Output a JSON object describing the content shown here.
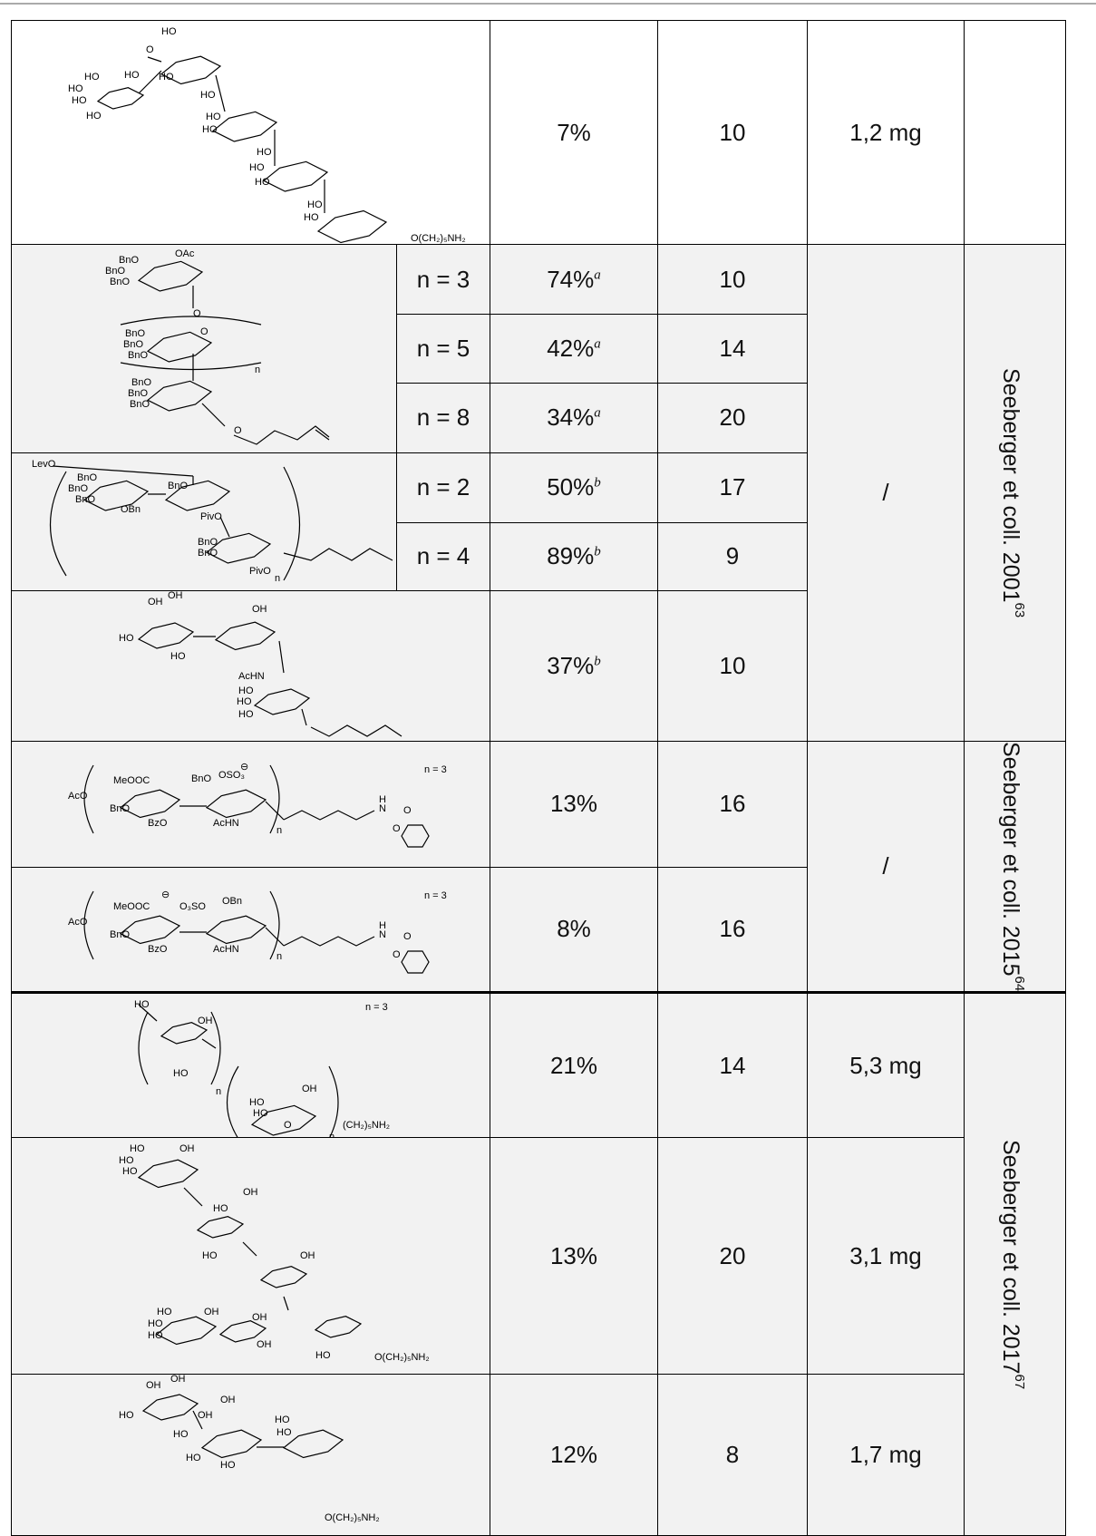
{
  "table": {
    "groups": [
      {
        "rows": [
          {
            "structure": [
              "HO",
              "O",
              "HO",
              "HO",
              "HO",
              "HO",
              "HO",
              "HO",
              "HO",
              "HO",
              "HO",
              "HO",
              "HO",
              "HO",
              "HO",
              "HO",
              "O(CH₂)₅NH₂"
            ],
            "yield": "7%",
            "compounds": "10",
            "mass": "1,2 mg"
          }
        ]
      },
      {
        "mass": "/",
        "reference": {
          "text": "Seeberger et coll. 2001",
          "note": "63"
        },
        "rows": [
          {
            "structure": [
              "BnO",
              "OAc",
              "BnO",
              "BnO",
              "O",
              "BnO",
              "BnO",
              "BnO",
              "O",
              "n",
              "BnO",
              "BnO",
              "BnO",
              "O"
            ],
            "variants": [
              {
                "n": "n = 3",
                "yield": "74%",
                "note": "a",
                "compounds": "10"
              },
              {
                "n": "n = 5",
                "yield": "42%",
                "note": "a",
                "compounds": "14"
              },
              {
                "n": "n = 8",
                "yield": "34%",
                "note": "a",
                "compounds": "20"
              }
            ]
          },
          {
            "structure": [
              "LevO",
              "BnO",
              "BnO",
              "BnO",
              "BnO",
              "OBn",
              "PivO",
              "BnO",
              "BnO",
              "PivO",
              "n"
            ],
            "variants": [
              {
                "n": "n = 2",
                "yield": "50%",
                "note": "b",
                "compounds": "17"
              },
              {
                "n": "n = 4",
                "yield": "89%",
                "note": "b",
                "compounds": "9"
              }
            ]
          },
          {
            "structure": [
              "OH",
              "OH",
              "OH",
              "HO",
              "HO",
              "AcHN",
              "HO",
              "HO",
              "HO"
            ],
            "yield": "37%",
            "note": "b",
            "compounds": "10"
          }
        ]
      },
      {
        "mass": "/",
        "reference": {
          "text": "Seeberger et coll. 2015",
          "note": "64"
        },
        "rows": [
          {
            "structure": [
              "n = 3",
              "MeOOC",
              "BnO",
              "OSO₃",
              "⊖",
              "AcO",
              "BnO",
              "BzO",
              "AcHN",
              "n",
              "H",
              "N",
              "O",
              "O"
            ],
            "yield": "13%",
            "compounds": "16"
          },
          {
            "structure": [
              "n = 3",
              "⊖",
              "O₃SO",
              "OBn",
              "MeOOC",
              "AcO",
              "BnO",
              "BzO",
              "AcHN",
              "n",
              "H",
              "N",
              "O",
              "O"
            ],
            "yield": "8%",
            "compounds": "16"
          }
        ]
      },
      {
        "reference": {
          "text": "Seeberger et coll. 2017",
          "note": "67"
        },
        "rows": [
          {
            "structure": [
              "HO",
              "OH",
              "HO",
              "n = 3",
              "n",
              "HO",
              "HO",
              "OH",
              "O",
              "(CH₂)₅NH₂",
              "n"
            ],
            "yield": "21%",
            "compounds": "14",
            "mass": "5,3 mg"
          },
          {
            "structure": [
              "HO",
              "OH",
              "HO",
              "HO",
              "HO",
              "OH",
              "HO",
              "OH",
              "HO",
              "HO",
              "HO",
              "OH",
              "OH",
              "OH",
              "HO",
              "O(CH₂)₅NH₂"
            ],
            "yield": "13%",
            "compounds": "20",
            "mass": "3,1 mg"
          },
          {
            "structure": [
              "OH",
              "OH",
              "OH",
              "HO",
              "HO",
              "OH",
              "HO",
              "HO",
              "HO",
              "HO",
              "O(CH₂)₅NH₂"
            ],
            "yield": "12%",
            "compounds": "8",
            "mass": "1,7 mg"
          }
        ]
      }
    ]
  }
}
